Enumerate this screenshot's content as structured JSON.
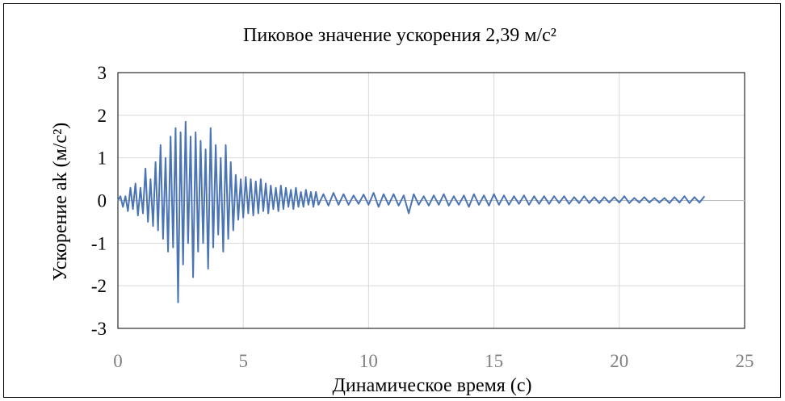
{
  "chart_data": {
    "type": "line",
    "title": "Пиковое значение ускорения 2,39 м/с²",
    "xlabel": "Динамическое время (с)",
    "ylabel": "Ускорение ak (м/с²)",
    "xlim": [
      0,
      25
    ],
    "ylim": [
      -3,
      3
    ],
    "x_ticks": [
      "0",
      "5",
      "10",
      "15",
      "20",
      "25"
    ],
    "y_ticks": [
      "3",
      "2",
      "1",
      "0",
      "-1",
      "-2",
      "-3"
    ],
    "x_tick_values": [
      0,
      5,
      10,
      15,
      20,
      25
    ],
    "y_tick_values": [
      3,
      2,
      1,
      0,
      -1,
      -2,
      -3
    ],
    "grid": true,
    "legend": "none",
    "series": [
      {
        "color": "#4a74b4",
        "x": [
          0.0,
          0.1,
          0.2,
          0.3,
          0.4,
          0.5,
          0.6,
          0.7,
          0.8,
          0.9,
          1.0,
          1.1,
          1.2,
          1.3,
          1.4,
          1.5,
          1.6,
          1.7,
          1.8,
          1.9,
          2.0,
          2.1,
          2.2,
          2.3,
          2.4,
          2.5,
          2.6,
          2.7,
          2.8,
          2.9,
          3.0,
          3.1,
          3.2,
          3.3,
          3.4,
          3.5,
          3.6,
          3.7,
          3.8,
          3.9,
          4.0,
          4.1,
          4.2,
          4.3,
          4.4,
          4.5,
          4.6,
          4.7,
          4.8,
          4.9,
          5.0,
          5.1,
          5.2,
          5.3,
          5.4,
          5.5,
          5.6,
          5.7,
          5.8,
          5.9,
          6.0,
          6.1,
          6.2,
          6.3,
          6.4,
          6.5,
          6.6,
          6.7,
          6.8,
          6.9,
          7.0,
          7.1,
          7.2,
          7.3,
          7.4,
          7.5,
          7.6,
          7.7,
          7.8,
          7.9,
          8.0,
          8.2,
          8.4,
          8.6,
          8.8,
          9.0,
          9.2,
          9.4,
          9.6,
          9.8,
          10.0,
          10.2,
          10.4,
          10.6,
          10.8,
          11.0,
          11.2,
          11.4,
          11.6,
          11.8,
          12.0,
          12.2,
          12.4,
          12.6,
          12.8,
          13.0,
          13.2,
          13.4,
          13.6,
          13.8,
          14.0,
          14.2,
          14.4,
          14.6,
          14.8,
          15.0,
          15.2,
          15.4,
          15.6,
          15.8,
          16.0,
          16.2,
          16.4,
          16.6,
          16.8,
          17.0,
          17.2,
          17.4,
          17.6,
          17.8,
          18.0,
          18.2,
          18.4,
          18.6,
          18.8,
          19.0,
          19.2,
          19.4,
          19.6,
          19.8,
          20.0,
          20.2,
          20.4,
          20.6,
          20.8,
          21.0,
          21.2,
          21.4,
          21.6,
          21.8,
          22.0,
          22.2,
          22.4,
          22.6,
          22.8,
          23.0,
          23.2,
          23.4
        ],
        "y": [
          0.0,
          0.1,
          -0.15,
          0.1,
          -0.25,
          0.3,
          -0.2,
          0.4,
          -0.35,
          0.3,
          -0.3,
          0.75,
          -0.5,
          0.5,
          -0.6,
          0.9,
          -0.7,
          1.3,
          -0.9,
          1.0,
          -1.2,
          1.5,
          -1.1,
          1.7,
          -2.39,
          1.6,
          -1.5,
          1.85,
          -1.0,
          1.5,
          -1.8,
          1.6,
          -1.2,
          1.4,
          -1.0,
          1.2,
          -1.6,
          1.7,
          -1.1,
          1.3,
          -0.8,
          1.0,
          -1.2,
          1.3,
          -0.9,
          0.9,
          -0.7,
          0.6,
          -0.45,
          0.5,
          -0.4,
          0.55,
          -0.3,
          0.5,
          -0.35,
          0.45,
          -0.3,
          0.5,
          -0.25,
          0.4,
          -0.3,
          0.35,
          -0.2,
          0.3,
          -0.25,
          0.35,
          -0.2,
          0.3,
          -0.15,
          0.25,
          -0.2,
          0.3,
          -0.15,
          0.2,
          -0.15,
          0.25,
          -0.1,
          0.2,
          -0.15,
          0.2,
          -0.1,
          0.15,
          -0.12,
          0.18,
          -0.1,
          0.15,
          -0.1,
          0.12,
          -0.08,
          0.14,
          -0.1,
          0.18,
          -0.15,
          0.15,
          -0.1,
          0.15,
          -0.12,
          0.12,
          -0.3,
          0.15,
          -0.1,
          0.1,
          -0.12,
          0.12,
          -0.1,
          0.15,
          -0.12,
          0.1,
          -0.1,
          0.12,
          -0.15,
          0.15,
          -0.1,
          0.12,
          -0.12,
          0.15,
          -0.1,
          0.12,
          -0.1,
          0.1,
          -0.08,
          0.12,
          -0.1,
          0.1,
          -0.08,
          0.1,
          -0.08,
          0.1,
          -0.06,
          0.1,
          -0.08,
          0.08,
          -0.06,
          0.1,
          -0.06,
          0.08,
          -0.06,
          0.08,
          -0.05,
          0.08,
          -0.05,
          0.1,
          -0.06,
          0.06,
          -0.05,
          0.08,
          -0.05,
          0.06,
          -0.05,
          0.06,
          -0.06,
          0.08,
          -0.05,
          0.1,
          -0.06,
          0.08,
          -0.05,
          0.1
        ]
      }
    ]
  }
}
